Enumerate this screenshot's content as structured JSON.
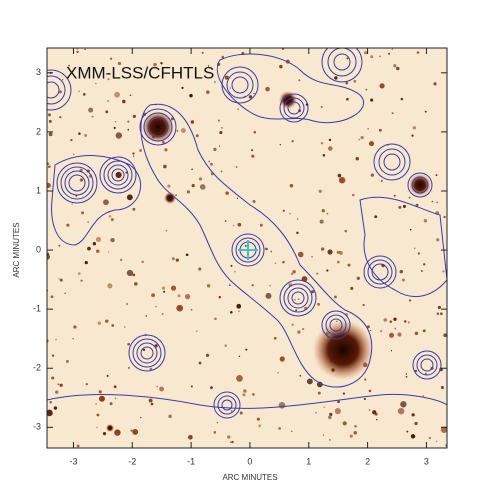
{
  "chart_data": {
    "type": "image",
    "title": "XMM-LSS/CFHTLS",
    "x_label": "ARC MINUTES",
    "y_label": "ARC MINUTES",
    "xlim": [
      -3.45,
      3.35
    ],
    "ylim": [
      -3.35,
      3.42
    ],
    "xticks": [
      -3,
      -2,
      -1,
      0,
      1,
      2,
      3
    ],
    "yticks": [
      -3,
      -2,
      -1,
      0,
      1,
      2,
      3
    ],
    "contour_color": "#3a3aa8"
  }
}
